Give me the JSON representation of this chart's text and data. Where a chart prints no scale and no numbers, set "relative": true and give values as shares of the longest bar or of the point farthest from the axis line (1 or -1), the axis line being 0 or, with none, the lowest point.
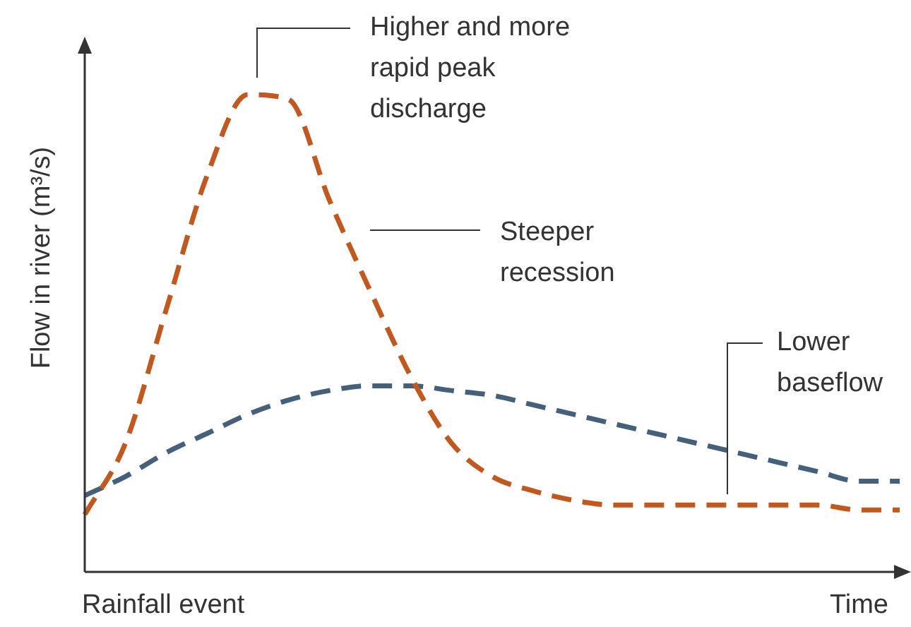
{
  "chart_data": {
    "type": "line",
    "relative": true,
    "ylabel": "Flow in river (m³/s)",
    "xlabel": "Time",
    "categories": [
      null,
      null,
      null,
      null,
      null,
      null,
      null,
      null,
      null,
      null,
      null,
      null,
      null,
      null,
      null,
      null,
      null,
      null,
      null,
      null,
      null
    ],
    "series": [
      {
        "color": "#c0581f",
        "values": [
          0.12,
          0.27,
          0.55,
          0.83,
          1.0,
          0.99,
          0.78,
          0.59,
          0.41,
          0.27,
          0.2,
          0.17,
          0.15,
          0.14,
          0.14,
          0.14,
          0.14,
          0.14,
          0.14,
          0.13,
          0.13
        ]
      },
      {
        "color": "#44607a",
        "values": [
          0.16,
          0.2,
          0.25,
          0.29,
          0.33,
          0.36,
          0.38,
          0.39,
          0.39,
          0.38,
          0.37,
          0.35,
          0.33,
          0.31,
          0.29,
          0.27,
          0.25,
          0.23,
          0.21,
          0.19,
          0.19
        ]
      }
    ],
    "line_style": "dashed",
    "marker": "none",
    "legend": false,
    "annotations": [
      "Higher and more rapid peak discharge",
      "Steeper recession",
      "Lower baseflow",
      "Rainfall event"
    ]
  }
}
